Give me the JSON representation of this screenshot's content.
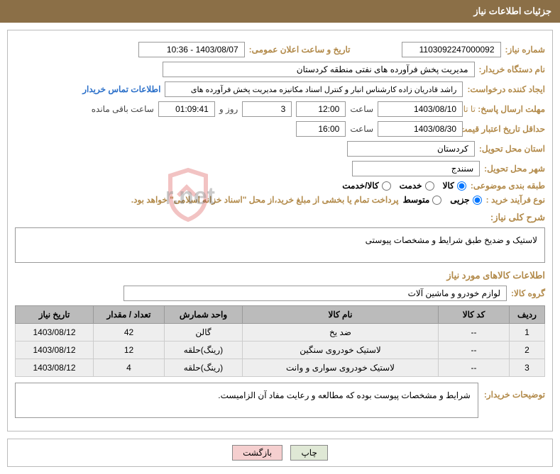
{
  "title_bar": "جزئیات اطلاعات نیاز",
  "fields": {
    "need_no_label": "شماره نیاز:",
    "need_no": "1103092247000092",
    "announce_label": "تاریخ و ساعت اعلان عمومی:",
    "announce_value": "1403/08/07 - 10:36",
    "buyer_org_label": "نام دستگاه خریدار:",
    "buyer_org": "مدیریت پخش فرآورده های نفتی منطقه کردستان",
    "requester_label": "ایجاد کننده درخواست:",
    "requester": "راشد قادریان زاده کارشناس انبار و کنترل اسناد مکانیزه مدیریت پخش فرآورده های",
    "buyer_contact_link": "اطلاعات تماس خریدار",
    "reply_deadline_label": "مهلت ارسال پاسخ:",
    "until_label": "تا تاریخ:",
    "reply_date": "1403/08/10",
    "time_label": "ساعت",
    "reply_time": "12:00",
    "days_count": "3",
    "days_and": "روز و",
    "hours_left": "01:09:41",
    "hours_suffix": "ساعت باقی مانده",
    "quote_min_label": "حداقل تاریخ اعتبار قیمت:",
    "quote_date": "1403/08/30",
    "quote_time": "16:00",
    "province_label": "استان محل تحویل:",
    "province": "کردستان",
    "city_label": "شهر محل تحویل:",
    "city": "سنندج",
    "category_label": "طبقه بندی موضوعی:",
    "cat_goods": "کالا",
    "cat_service": "خدمت",
    "cat_both": "کالا/خدمت",
    "process_label": "نوع فرآیند خرید :",
    "proc_minor": "جزیی",
    "proc_medium": "متوسط",
    "pay_note": "پرداخت تمام یا بخشی از مبلغ خرید،از محل \"اسناد خزانه اسلامی\" خواهد بود.",
    "desc_label": "شرح کلی نیاز:",
    "desc_text": "لاستیک و ضدیخ طبق شرایط و مشخصات پیوستی",
    "items_section": "اطلاعات کالاهای مورد نیاز",
    "group_label": "گروه کالا:",
    "group_value": "لوازم خودرو و ماشین آلات",
    "remarks_label": "توضیحات خریدار:",
    "remarks_text": "شرایط و مشخصات پیوست بوده که مطالعه و رعایت مفاد آن الزامیست."
  },
  "table": {
    "headers": {
      "row": "ردیف",
      "code": "کد کالا",
      "name": "نام کالا",
      "unit": "واحد شمارش",
      "qty": "تعداد / مقدار",
      "date": "تاریخ نیاز"
    },
    "rows": [
      {
        "r": "1",
        "code": "--",
        "name": "ضد یخ",
        "unit": "گالن",
        "qty": "42",
        "date": "1403/08/12"
      },
      {
        "r": "2",
        "code": "--",
        "name": "لاستیک خودروی سنگین",
        "unit": "(رینگ)حلقه",
        "qty": "12",
        "date": "1403/08/12"
      },
      {
        "r": "3",
        "code": "--",
        "name": "لاستیک خودروی سواری و وانت",
        "unit": "(رینگ)حلقه",
        "qty": "4",
        "date": "1403/08/12"
      }
    ]
  },
  "buttons": {
    "print": "چاپ",
    "back": "بازگشت"
  },
  "watermark_text": "AriaTender.net",
  "watermark_colors": {
    "shield": "#d43a3a",
    "text": "#555555"
  }
}
